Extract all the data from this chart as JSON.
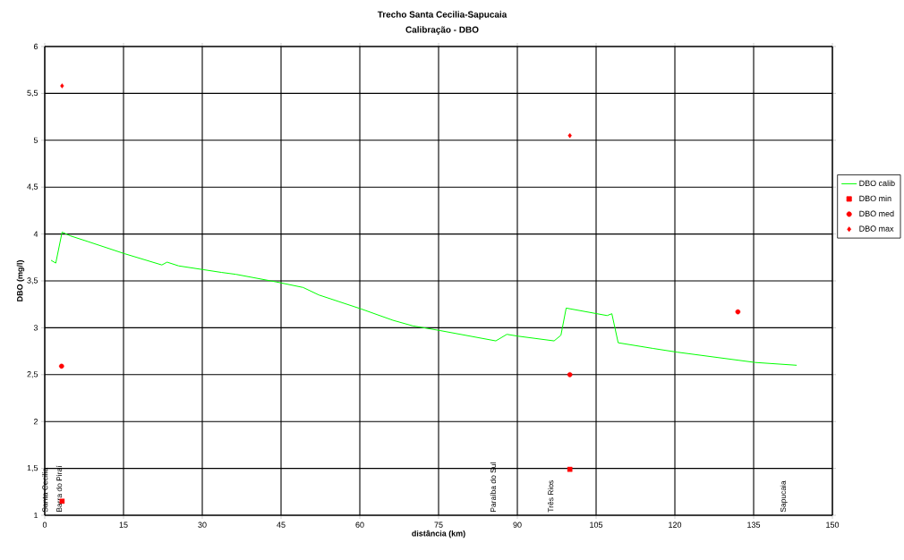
{
  "chart_data": {
    "type": "line",
    "title": "Trecho Santa Cecilia-Sapucaia",
    "subtitle": "Calibração - DBO",
    "xlabel": "distância (km)",
    "ylabel": "DBO (mg/l)",
    "xlim": [
      0,
      150
    ],
    "xticks": [
      0,
      15,
      30,
      45,
      60,
      75,
      90,
      105,
      120,
      135,
      150
    ],
    "ylim": [
      1,
      6
    ],
    "yticks": [
      1,
      {
        "value": 1.5,
        "label": "1,5"
      },
      2,
      {
        "value": 2.5,
        "label": "2,5"
      },
      3,
      {
        "value": 3.5,
        "label": "3,5"
      },
      4,
      {
        "value": 4.5,
        "label": "4,5"
      },
      5,
      {
        "value": 5.5,
        "label": "5,5"
      },
      6
    ],
    "grid": true,
    "legend": "right",
    "series": [
      {
        "name": "DBO calib",
        "color": "#00ff00",
        "marker": "none",
        "x": [
          1.2,
          2.1,
          3.3,
          4.9,
          8.2,
          15.2,
          22.3,
          23.3,
          25.5,
          30.2,
          33.7,
          36.4,
          44.0,
          49.2,
          52.2,
          60.3,
          66.3,
          70.1,
          75.3,
          85.9,
          88.0,
          90.2,
          97.0,
          98.3,
          99.3,
          107.1,
          108.0,
          109.2,
          115.8,
          120.4,
          135.3,
          143.2
        ],
        "values": [
          3.72,
          3.69,
          4.02,
          3.98,
          3.92,
          3.79,
          3.67,
          3.7,
          3.66,
          3.62,
          3.59,
          3.57,
          3.49,
          3.43,
          3.35,
          3.2,
          3.08,
          3.02,
          2.97,
          2.86,
          2.93,
          2.91,
          2.86,
          2.92,
          3.21,
          3.13,
          3.15,
          2.84,
          2.78,
          2.74,
          2.63,
          2.6
        ]
      },
      {
        "name": "DBO min",
        "type": "scatter",
        "color": "#ff0000",
        "marker": "square",
        "x": [
          3.3,
          100
        ],
        "values": [
          1.15,
          1.49
        ]
      },
      {
        "name": "DBO med",
        "type": "scatter",
        "color": "#ff0000",
        "marker": "circle",
        "x": [
          3.2,
          100,
          132
        ],
        "values": [
          2.59,
          2.5,
          3.17
        ]
      },
      {
        "name": "DBO max",
        "type": "scatter",
        "color": "#ff0000",
        "marker": "diamond",
        "x": [
          3.3,
          100
        ],
        "values": [
          5.58,
          5.05
        ]
      }
    ],
    "annotations": [
      "Santa Cecilia",
      "Barra do Piraí",
      "Paraíba do Sul",
      "Três Rios",
      "Sapucaia"
    ]
  }
}
